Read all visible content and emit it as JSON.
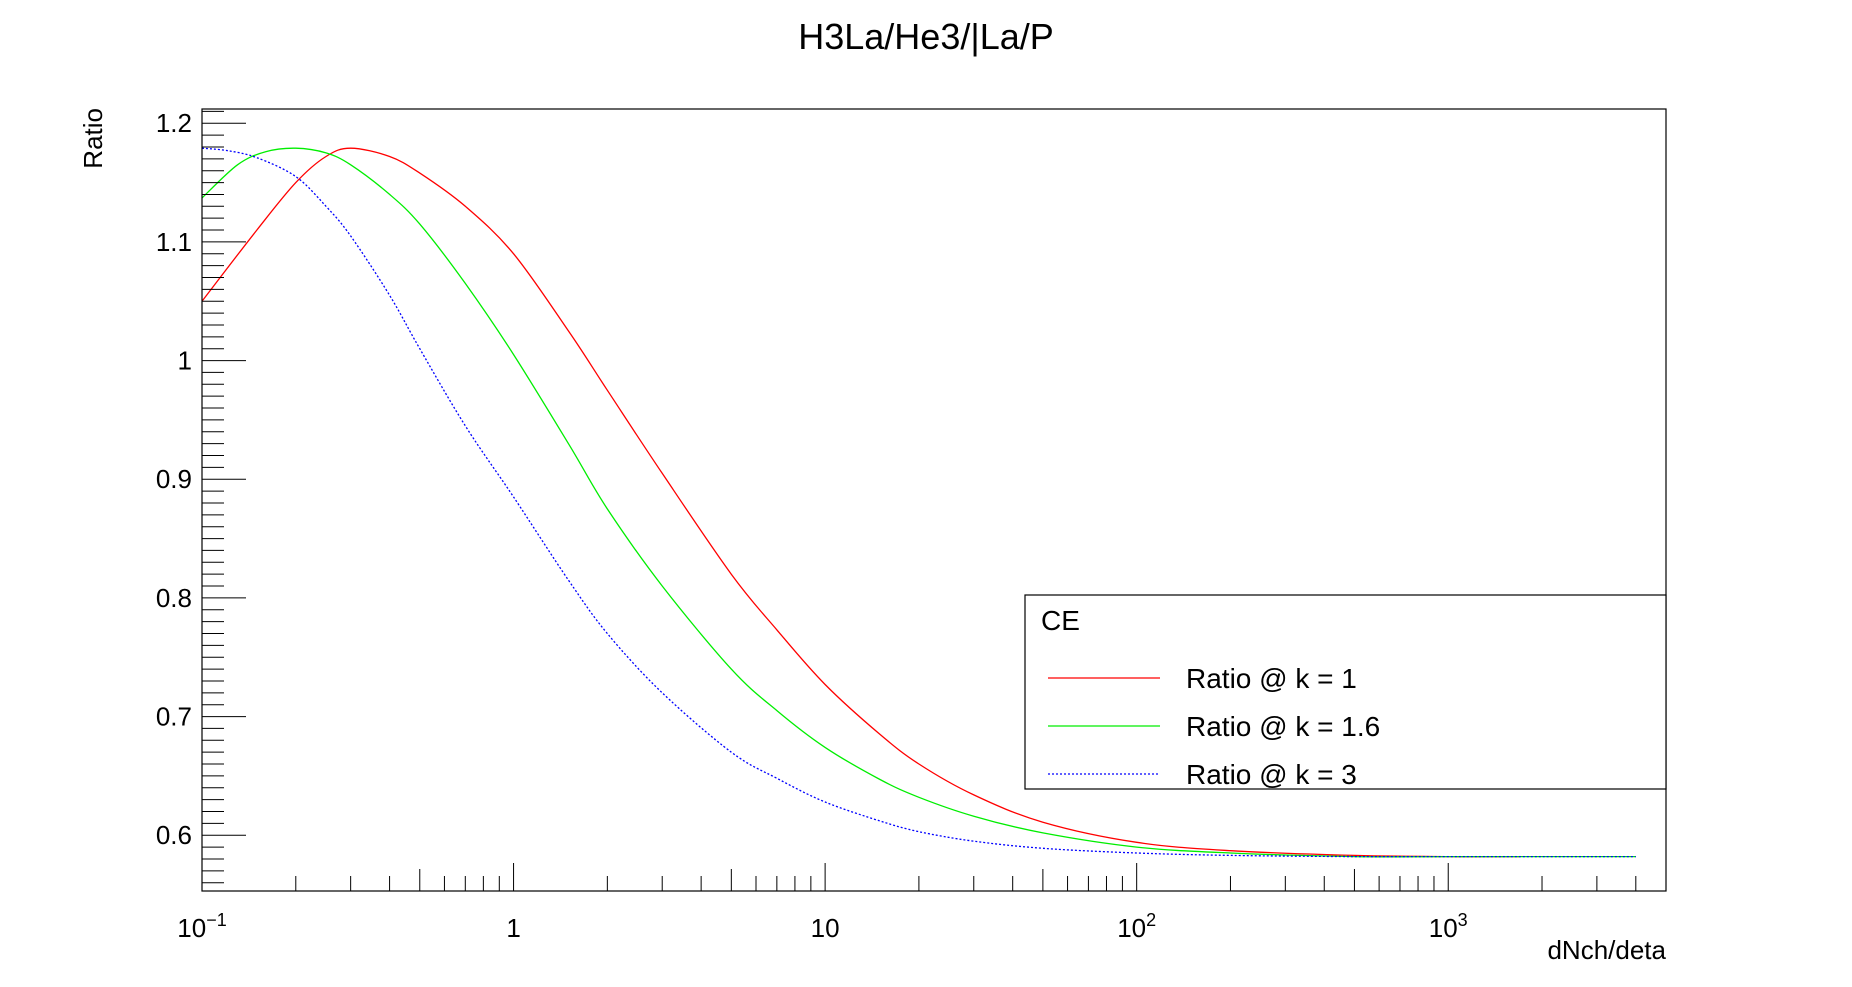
{
  "chart_data": {
    "type": "line",
    "title": "H3La/He3/|La/P",
    "xlabel": "dNch/deta",
    "ylabel": "Ratio",
    "xscale": "log",
    "xlim": [
      0.1,
      5000
    ],
    "ylim": [
      0.553,
      1.212
    ],
    "grid": false,
    "legend": {
      "header": "CE",
      "placement": "right",
      "entries": [
        "Ratio @ k = 1",
        "Ratio @ k = 1.6",
        "Ratio @ k = 3"
      ]
    },
    "xticks": [
      {
        "value": 0.1,
        "base": "10",
        "exp": "−1"
      },
      {
        "value": 1,
        "base": "1",
        "exp": ""
      },
      {
        "value": 10,
        "base": "10",
        "exp": ""
      },
      {
        "value": 100,
        "base": "10",
        "exp": "2"
      },
      {
        "value": 1000,
        "base": "10",
        "exp": "3"
      }
    ],
    "yticks": [
      "0.6",
      "0.7",
      "0.8",
      "0.9",
      "1",
      "1.1",
      "1.2"
    ],
    "series": [
      {
        "name": "Ratio @ k = 1",
        "color": "#ff0000",
        "dashed": false,
        "x": [
          0.1,
          0.15,
          0.2,
          0.25,
          0.3,
          0.4,
          0.5,
          0.7,
          1,
          1.5,
          2,
          3,
          5,
          7,
          10,
          15,
          20,
          30,
          50,
          100,
          200,
          500,
          1000,
          1700
        ],
        "y": [
          1.05,
          1.11,
          1.15,
          1.172,
          1.179,
          1.172,
          1.158,
          1.13,
          1.09,
          1.025,
          0.975,
          0.905,
          0.82,
          0.773,
          0.727,
          0.685,
          0.66,
          0.634,
          0.611,
          0.594,
          0.587,
          0.583,
          0.582,
          0.582
        ]
      },
      {
        "name": "Ratio @ k = 1.6",
        "color": "#00ee00",
        "dashed": false,
        "x": [
          0.1,
          0.13,
          0.16,
          0.2,
          0.25,
          0.3,
          0.4,
          0.5,
          0.7,
          1,
          1.5,
          2,
          3,
          5,
          7,
          10,
          15,
          20,
          30,
          50,
          100,
          200,
          500,
          1000,
          2000,
          4000
        ],
        "y": [
          1.137,
          1.165,
          1.176,
          1.179,
          1.175,
          1.165,
          1.14,
          1.115,
          1.065,
          1.005,
          0.93,
          0.875,
          0.81,
          0.74,
          0.705,
          0.674,
          0.647,
          0.632,
          0.616,
          0.602,
          0.59,
          0.585,
          0.582,
          0.582,
          0.582,
          0.582
        ]
      },
      {
        "name": "Ratio @ k = 3",
        "color": "#0000ff",
        "dashed": true,
        "x": [
          0.1,
          0.12,
          0.15,
          0.2,
          0.25,
          0.3,
          0.4,
          0.5,
          0.7,
          1,
          1.5,
          2,
          3,
          5,
          7,
          10,
          15,
          20,
          30,
          50,
          100,
          200,
          500,
          1000,
          2000,
          4000
        ],
        "y": [
          1.179,
          1.177,
          1.171,
          1.155,
          1.13,
          1.105,
          1.055,
          1.01,
          0.945,
          0.885,
          0.815,
          0.77,
          0.72,
          0.67,
          0.648,
          0.628,
          0.612,
          0.603,
          0.595,
          0.589,
          0.585,
          0.583,
          0.582,
          0.582,
          0.582,
          0.582
        ]
      }
    ]
  }
}
